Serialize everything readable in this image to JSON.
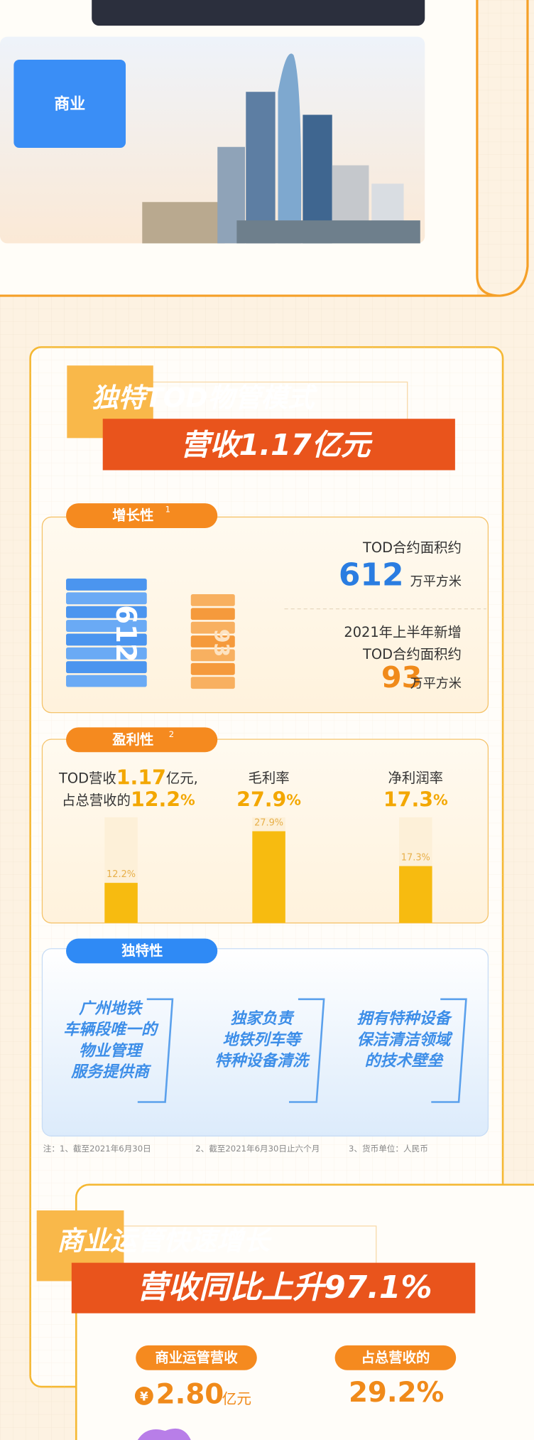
{
  "top_section": {
    "label": "商业"
  },
  "tod": {
    "title_line1": "独特TOD物管模式",
    "title_line2": "营收1.17亿元",
    "growth": {
      "tag": "增长性",
      "note_ref": "1",
      "tower_labels": [
        "612",
        "93"
      ],
      "stat1": {
        "label": "TOD合约面积约",
        "value": "612",
        "unit": "万平方米"
      },
      "stat2": {
        "label_line1": "2021年上半年新增",
        "label_line2": "TOD合约面积约",
        "value": "93",
        "unit": "万平方米"
      }
    },
    "profit": {
      "tag": "盈利性",
      "note_ref": "2",
      "items": [
        {
          "line1_prefix": "TOD营收",
          "line1_value": "1.17",
          "line1_suffix": "亿元,",
          "title": "占总营收的",
          "value": 12.2,
          "unit": "%",
          "bar_label": "12.2%"
        },
        {
          "title": "毛利率",
          "value": 27.9,
          "unit": "%",
          "bar_label": "27.9%"
        },
        {
          "title": "净利润率",
          "value": 17.3,
          "unit": "%",
          "bar_label": "17.3%"
        }
      ]
    },
    "unique": {
      "tag": "独特性",
      "items": [
        [
          "广州地铁",
          "车辆段唯一的",
          "物业管理",
          "服务提供商"
        ],
        [
          "独家负责",
          "地铁列车等",
          "特种设备清洗"
        ],
        [
          "拥有特种设备",
          "保洁清洁领域",
          "的技术壁垒"
        ]
      ]
    },
    "notes": [
      "注：1、截至2021年6月30日",
      "2、截至2021年6月30日止六个月",
      "3、货币单位：人民币"
    ]
  },
  "commercial": {
    "title_line1": "商业运管快速增长",
    "title_line2": "营收同比上升97.1%",
    "left_tag": "商业运管营收",
    "left_currency": "¥",
    "left_value": "2.80",
    "left_unit": "亿元",
    "right_tag": "占总营收的",
    "right_value": "29.2%"
  }
}
